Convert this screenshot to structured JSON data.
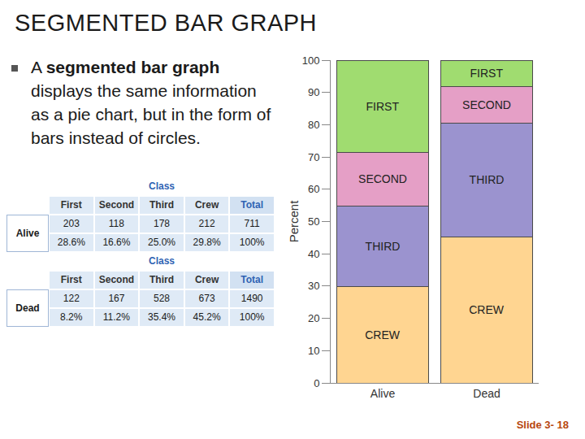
{
  "slide": {
    "title": "SEGMENTED BAR GRAPH",
    "bullet": [
      {
        "text": "A ",
        "bold": false
      },
      {
        "text": "segmented bar graph",
        "bold": true
      },
      {
        "text": " displays the same information as a pie chart, but in the form of bars instead of circles.",
        "bold": false
      }
    ],
    "footer": "Slide 3- 18"
  },
  "tables": [
    {
      "header": "Class",
      "columns": [
        "First",
        "Second",
        "Third",
        "Crew",
        "Total"
      ],
      "row_label": "Alive",
      "rows": [
        [
          "203",
          "118",
          "178",
          "212",
          "711"
        ],
        [
          "28.6%",
          "16.6%",
          "25.0%",
          "29.8%",
          "100%"
        ]
      ]
    },
    {
      "header": "Class",
      "columns": [
        "First",
        "Second",
        "Third",
        "Crew",
        "Total"
      ],
      "row_label": "Dead",
      "rows": [
        [
          "122",
          "167",
          "528",
          "673",
          "1490"
        ],
        [
          "8.2%",
          "11.2%",
          "35.4%",
          "45.2%",
          "100%"
        ]
      ]
    }
  ],
  "chart_data": {
    "type": "bar",
    "stacked": true,
    "grid": false,
    "y_label": "Percent",
    "categories": [
      "Alive",
      "Dead"
    ],
    "series": [
      {
        "name": "CREW",
        "color": "#ffd591",
        "values": [
          29.8,
          45.2
        ]
      },
      {
        "name": "THIRD",
        "color": "#9b93cf",
        "values": [
          25.0,
          35.4
        ]
      },
      {
        "name": "SECOND",
        "color": "#e59fc6",
        "values": [
          16.6,
          11.2
        ]
      },
      {
        "name": "FIRST",
        "color": "#a0dc70",
        "values": [
          28.6,
          8.2
        ]
      }
    ],
    "ylim": [
      0,
      100
    ],
    "yticks": [
      0,
      10,
      20,
      30,
      40,
      50,
      60,
      70,
      80,
      90,
      100
    ]
  }
}
